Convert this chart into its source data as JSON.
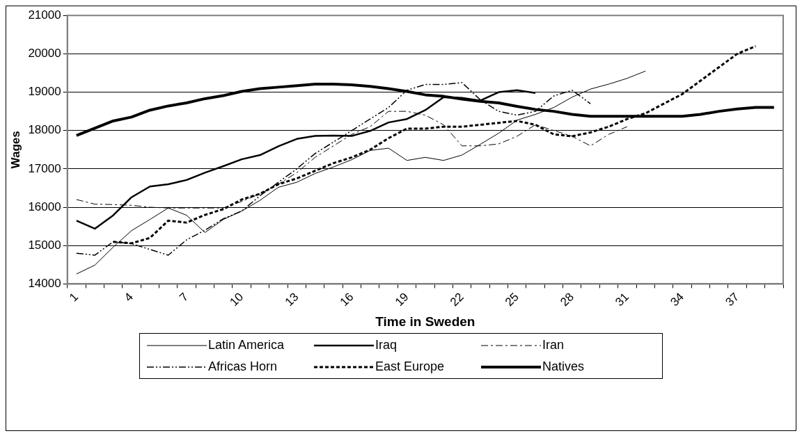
{
  "chart_data": {
    "type": "line",
    "xlabel": "Time in Sweden",
    "ylabel": "Wages",
    "categories": [
      "1",
      null,
      null,
      "4",
      null,
      null,
      "7",
      null,
      null,
      "10",
      null,
      null,
      "13",
      null,
      null,
      "16",
      null,
      null,
      "19",
      null,
      null,
      "22",
      null,
      null,
      "25",
      null,
      null,
      "28",
      null,
      null,
      "31",
      null,
      null,
      "34",
      null,
      null,
      "37",
      null,
      null
    ],
    "series": [
      {
        "name": "Latin America",
        "color": "#000000",
        "line_style": "solid",
        "values": [
          14260,
          14490,
          14960,
          15390,
          15680,
          15980,
          15790,
          15340,
          15680,
          15900,
          16180,
          16520,
          16650,
          16880,
          17050,
          17240,
          17480,
          17540,
          17220,
          17300,
          17220,
          17360,
          17640,
          17930,
          18270,
          18420,
          18600,
          18870,
          19080,
          19210,
          19360,
          19550,
          null,
          null,
          null,
          null,
          null,
          null,
          null
        ]
      },
      {
        "name": "Iraq",
        "color": "#000000",
        "line_style": "solid",
        "values": [
          15650,
          15440,
          15790,
          16260,
          16540,
          16600,
          16710,
          16900,
          17070,
          17250,
          17360,
          17590,
          17780,
          17860,
          17870,
          17860,
          17990,
          18210,
          18300,
          18530,
          18870,
          18850,
          18780,
          19000,
          19050,
          18980,
          null,
          null,
          null,
          null,
          null,
          null,
          null,
          null,
          null,
          null,
          null,
          null,
          null
        ]
      },
      {
        "name": "Iran",
        "color": "#000000",
        "line_style": "dashed",
        "values": [
          16200,
          16080,
          16070,
          16050,
          16000,
          15980,
          15980,
          15980,
          15980,
          16150,
          16350,
          16600,
          16900,
          17300,
          17600,
          17900,
          18100,
          18500,
          18500,
          18400,
          18150,
          17600,
          17600,
          17650,
          17850,
          18150,
          18000,
          17850,
          17600,
          17900,
          18100,
          null,
          null,
          null,
          null,
          null,
          null,
          null,
          null
        ]
      },
      {
        "name": "Africas Horn",
        "color": "#000000",
        "line_style": "dashed",
        "values": [
          14800,
          14750,
          15100,
          15050,
          14900,
          14750,
          15150,
          15400,
          15700,
          15900,
          16300,
          16650,
          17000,
          17400,
          17700,
          18000,
          18300,
          18600,
          19050,
          19200,
          19200,
          19250,
          18800,
          18500,
          18400,
          18500,
          18900,
          19050,
          18700,
          null,
          null,
          null,
          null,
          null,
          null,
          null,
          null,
          null,
          null
        ]
      },
      {
        "name": "East Europe",
        "color": "#000000",
        "line_style": "dashed",
        "values": [
          null,
          null,
          15100,
          15060,
          15200,
          15650,
          15600,
          15800,
          15950,
          16200,
          16350,
          16600,
          16750,
          16950,
          17150,
          17300,
          17500,
          17800,
          18050,
          18050,
          18100,
          18100,
          18150,
          18200,
          18250,
          18150,
          17900,
          17850,
          17950,
          18100,
          18300,
          18450,
          18700,
          18950,
          19300,
          19650,
          20000,
          20200,
          null
        ]
      },
      {
        "name": "Natives",
        "color": "#000000",
        "line_style": "solid",
        "values": [
          17870,
          18060,
          18250,
          18350,
          18530,
          18640,
          18720,
          18830,
          18910,
          19020,
          19090,
          19130,
          19170,
          19210,
          19210,
          19190,
          19150,
          19090,
          19020,
          18930,
          18890,
          18820,
          18760,
          18720,
          18630,
          18550,
          18500,
          18420,
          18370,
          18370,
          18370,
          18370,
          18370,
          18370,
          18420,
          18500,
          18560,
          18600,
          18600
        ]
      }
    ],
    "ylim": [
      14000,
      21000
    ],
    "yticks": [
      14000,
      15000,
      16000,
      17000,
      18000,
      19000,
      20000,
      21000
    ],
    "grid": "y",
    "legend": "bottom",
    "marker": "none"
  }
}
